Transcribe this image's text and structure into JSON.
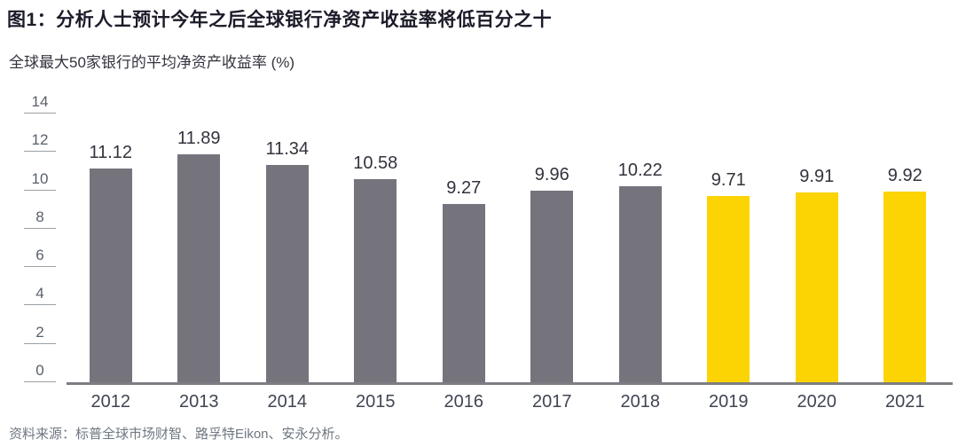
{
  "chart_data": {
    "type": "bar",
    "title": "图1：分析人士预计今年之后全球银行净资产收益率将低百分之十",
    "subtitle": "全球最大50家银行的平均净资产收益率 (%)",
    "categories": [
      "2012",
      "2013",
      "2014",
      "2015",
      "2016",
      "2017",
      "2018",
      "2019",
      "2020",
      "2021"
    ],
    "values": [
      11.12,
      11.89,
      11.34,
      10.58,
      9.27,
      9.96,
      10.22,
      9.71,
      9.91,
      9.92
    ],
    "value_labels": [
      "11.12",
      "11.89",
      "11.34",
      "10.58",
      "9.27",
      "9.96",
      "10.22",
      "9.71",
      "9.91",
      "9.92"
    ],
    "xlabel": "",
    "ylabel": "",
    "ylim": [
      0,
      14
    ],
    "yticks": [
      0,
      2,
      4,
      6,
      8,
      10,
      12,
      14
    ],
    "grid": false,
    "legend": null,
    "forecast_start_index": 7,
    "colors": {
      "actual_bar": "#75747C",
      "forecast_bar": "#FCD303",
      "axis_line": "#7d7d84",
      "tick_line": "#9aa0a6"
    }
  },
  "footer": {
    "source": "资料来源：标普全球市场财智、路孚特Eikon、安永分析。"
  }
}
